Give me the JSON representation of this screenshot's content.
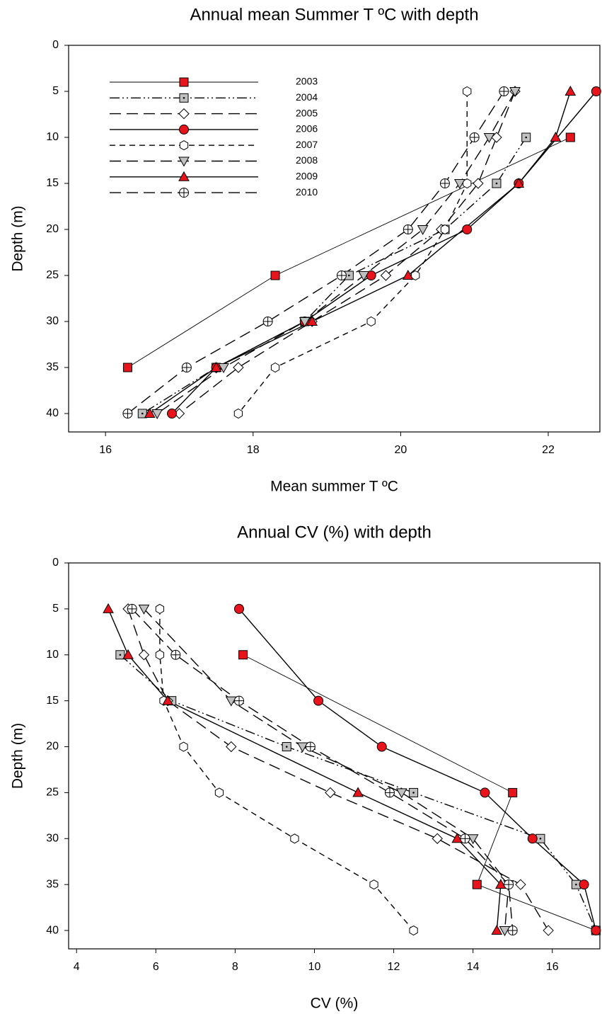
{
  "chart_data": [
    {
      "type": "line",
      "title": "Annual mean Summer T ºC with depth",
      "x_label": "Mean summer T ºC",
      "y_label": "Depth (m)",
      "xlim": [
        15.5,
        22.7
      ],
      "xticks": [
        16,
        18,
        20,
        22
      ],
      "ylim": [
        0,
        42
      ],
      "yticks": [
        0,
        5,
        10,
        15,
        20,
        25,
        30,
        35,
        40
      ],
      "y_inverted": true,
      "legend": "upper left",
      "series": [
        {
          "name": "2003",
          "color": "#e8141c",
          "marker": "square",
          "dash": "solid-thin",
          "depths": [
            10,
            25,
            35
          ],
          "values": [
            22.3,
            18.3,
            16.3
          ]
        },
        {
          "name": "2004",
          "color": "#c0c0c0",
          "marker": "square-dot",
          "dash": "dash-dot-dot",
          "depths": [
            10,
            15,
            20,
            25,
            30,
            35,
            40
          ],
          "values": [
            21.7,
            21.3,
            20.6,
            19.3,
            18.7,
            17.5,
            16.5
          ]
        },
        {
          "name": "2005",
          "color": "#ffffff",
          "marker": "diamond",
          "dash": "long-dash",
          "depths": [
            5,
            10,
            15,
            20,
            25,
            30,
            35,
            40
          ],
          "values": [
            21.55,
            21.3,
            21.05,
            20.55,
            19.8,
            18.8,
            17.8,
            17.0
          ]
        },
        {
          "name": "2006",
          "color": "#e8141c",
          "marker": "circle",
          "dash": "solid",
          "depths": [
            5,
            15,
            20,
            25,
            30,
            35,
            40
          ],
          "values": [
            22.65,
            21.6,
            20.9,
            19.6,
            18.7,
            17.5,
            16.9
          ]
        },
        {
          "name": "2007",
          "color": "#ffffff",
          "marker": "hexagon",
          "dash": "short-dash",
          "depths": [
            5,
            15,
            20,
            25,
            30,
            35,
            40
          ],
          "values": [
            20.9,
            20.9,
            20.6,
            20.2,
            19.6,
            18.3,
            17.8
          ]
        },
        {
          "name": "2008",
          "color": "#c0c0c0",
          "marker": "triangle-down",
          "dash": "long-dash",
          "depths": [
            5,
            10,
            15,
            20,
            25,
            30,
            35,
            40
          ],
          "values": [
            21.55,
            21.2,
            20.8,
            20.3,
            19.5,
            18.7,
            17.6,
            16.7
          ]
        },
        {
          "name": "2009",
          "color": "#e8141c",
          "marker": "triangle",
          "dash": "solid",
          "depths": [
            5,
            10,
            15,
            25,
            30,
            35,
            40
          ],
          "values": [
            22.3,
            22.1,
            21.6,
            20.1,
            18.8,
            17.5,
            16.6
          ]
        },
        {
          "name": "2010",
          "color": "#ffffff",
          "marker": "crossed-circle",
          "dash": "long-dash",
          "depths": [
            5,
            10,
            15,
            20,
            25,
            30,
            35,
            40
          ],
          "values": [
            21.4,
            21.0,
            20.6,
            20.1,
            19.2,
            18.2,
            17.1,
            16.3
          ]
        }
      ]
    },
    {
      "type": "line",
      "title": "Annual CV (%) with depth",
      "x_label": "CV (%)",
      "y_label": "Depth (m)",
      "xlim": [
        3.8,
        17.2
      ],
      "xticks": [
        4,
        6,
        8,
        10,
        12,
        14,
        16
      ],
      "ylim": [
        0,
        42
      ],
      "yticks": [
        0,
        5,
        10,
        15,
        20,
        25,
        30,
        35,
        40
      ],
      "y_inverted": true,
      "series": [
        {
          "color": "#e8141c",
          "marker": "square",
          "dash": "solid-thin",
          "depths": [
            10,
            25,
            35,
            40
          ],
          "values": [
            8.2,
            15.0,
            14.1,
            17.1
          ]
        },
        {
          "color": "#c0c0c0",
          "marker": "square-dot",
          "dash": "dash-dot-dot",
          "depths": [
            10,
            15,
            20,
            25,
            30,
            35,
            40
          ],
          "values": [
            5.1,
            6.4,
            9.3,
            12.5,
            15.7,
            16.6,
            17.1
          ]
        },
        {
          "color": "#ffffff",
          "marker": "diamond",
          "dash": "long-dash",
          "depths": [
            5,
            10,
            15,
            20,
            25,
            30,
            35,
            40
          ],
          "values": [
            5.3,
            5.7,
            6.3,
            7.9,
            10.4,
            13.1,
            15.2,
            15.9
          ]
        },
        {
          "color": "#e8141c",
          "marker": "circle",
          "dash": "solid",
          "depths": [
            5,
            15,
            20,
            25,
            30,
            35,
            40
          ],
          "values": [
            8.1,
            10.1,
            11.7,
            14.3,
            15.5,
            16.8,
            17.1
          ]
        },
        {
          "color": "#ffffff",
          "marker": "hexagon",
          "dash": "short-dash",
          "depths": [
            5,
            10,
            15,
            20,
            25,
            30,
            35,
            40
          ],
          "values": [
            6.1,
            6.1,
            6.2,
            6.7,
            7.6,
            9.5,
            11.5,
            12.5
          ]
        },
        {
          "color": "#c0c0c0",
          "marker": "triangle-down",
          "dash": "long-dash",
          "depths": [
            5,
            15,
            20,
            25,
            30,
            35,
            40
          ],
          "values": [
            5.7,
            7.9,
            9.7,
            12.2,
            14.0,
            14.9,
            14.8
          ]
        },
        {
          "color": "#e8141c",
          "marker": "triangle",
          "dash": "solid",
          "depths": [
            5,
            10,
            15,
            25,
            30,
            35,
            40
          ],
          "values": [
            4.8,
            5.3,
            6.3,
            11.1,
            13.6,
            14.7,
            14.6
          ]
        },
        {
          "color": "#ffffff",
          "marker": "crossed-circle",
          "dash": "long-dash",
          "depths": [
            5,
            10,
            15,
            20,
            25,
            30,
            35,
            40
          ],
          "values": [
            5.4,
            6.5,
            8.1,
            9.9,
            11.9,
            13.8,
            14.9,
            15.0
          ]
        }
      ]
    }
  ]
}
